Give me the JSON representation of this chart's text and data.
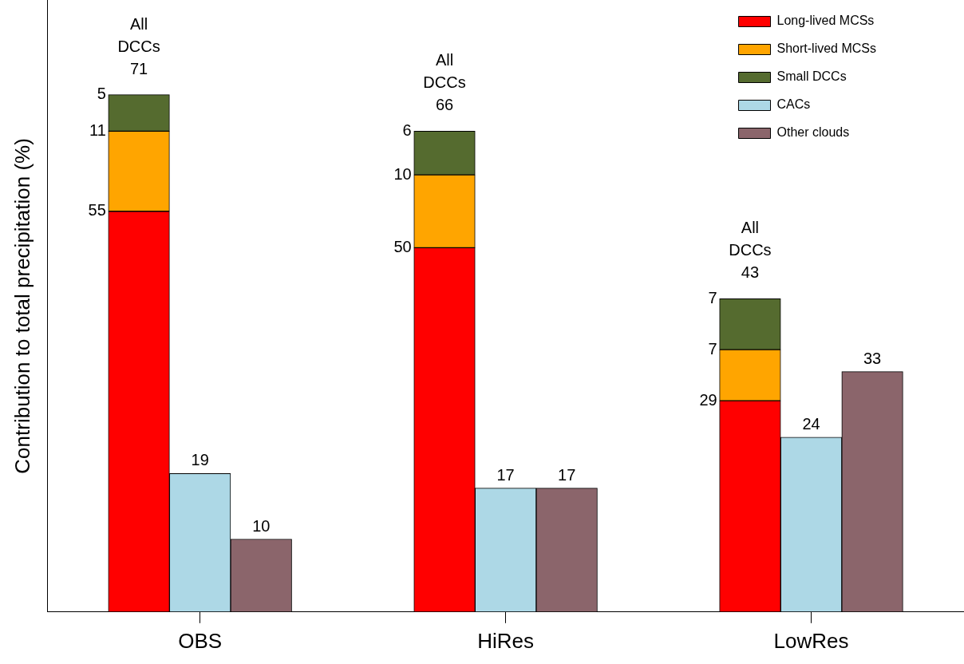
{
  "chart_data": {
    "type": "bar",
    "ylabel": "Contribution to total precipitation (%)",
    "categories": [
      null,
      null,
      "OBS",
      null,
      null,
      null,
      null,
      "HiRes",
      null,
      null,
      null,
      null,
      "LowRes",
      null,
      null
    ],
    "stacked": true,
    "series": [
      {
        "name": "Long-lived MCSs",
        "color": "#ff0000",
        "values": [
          null,
          55,
          null,
          null,
          null,
          null,
          50,
          null,
          null,
          null,
          null,
          29,
          null,
          null,
          null
        ],
        "value_labels": [
          null,
          "55",
          null,
          null,
          null,
          null,
          "50",
          null,
          null,
          null,
          null,
          "29",
          null,
          null,
          null
        ]
      },
      {
        "name": "Short-lived MCSs",
        "color": "#ffa500",
        "values": [
          null,
          11,
          null,
          null,
          null,
          null,
          10,
          null,
          null,
          null,
          null,
          7,
          null,
          null,
          null
        ],
        "value_labels": [
          null,
          "11",
          null,
          null,
          null,
          null,
          "10",
          null,
          null,
          null,
          null,
          "7",
          null,
          null,
          null
        ]
      },
      {
        "name": "Small DCCs",
        "color": "#556b2f",
        "values": [
          null,
          5,
          null,
          null,
          null,
          null,
          6,
          null,
          null,
          null,
          null,
          7,
          null,
          null,
          null
        ],
        "value_labels": [
          null,
          "5",
          null,
          null,
          null,
          null,
          "6",
          null,
          null,
          null,
          null,
          "7",
          null,
          null,
          null
        ]
      },
      {
        "name": "CACs",
        "color": "#add8e6",
        "values": [
          null,
          null,
          19,
          null,
          null,
          null,
          null,
          17,
          null,
          null,
          null,
          null,
          24,
          null,
          null
        ],
        "value_labels": [
          null,
          null,
          "19",
          null,
          null,
          null,
          null,
          "17",
          null,
          null,
          null,
          null,
          "24",
          null,
          null
        ]
      },
      {
        "name": "Other clouds",
        "color": "#8b656b",
        "values": [
          null,
          null,
          null,
          10,
          null,
          null,
          null,
          null,
          17,
          null,
          null,
          null,
          null,
          33,
          null
        ],
        "value_labels": [
          null,
          null,
          null,
          "10",
          null,
          null,
          null,
          null,
          "17",
          null,
          null,
          null,
          null,
          "33",
          null
        ]
      }
    ],
    "totals": [
      null,
      "All DCCs 71",
      null,
      null,
      null,
      null,
      "All DCCs 66",
      null,
      null,
      null,
      null,
      "All DCCs 43",
      null,
      null,
      null
    ],
    "ylim": [
      0,
      84
    ],
    "tick_labels": "x",
    "grid": false,
    "legend": "top right"
  }
}
